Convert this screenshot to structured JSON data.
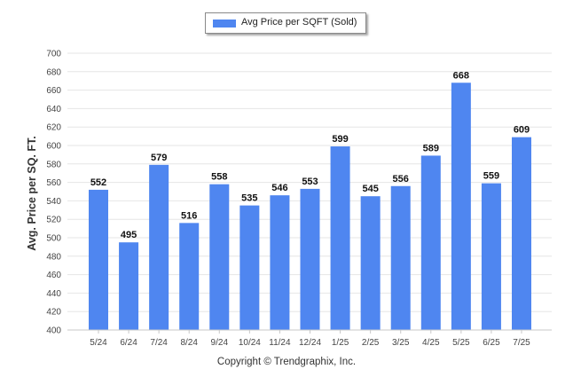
{
  "chart_data": {
    "type": "bar",
    "title": "",
    "xlabel": "",
    "ylabel": "Avg. Price per SQ. FT.",
    "categories": [
      "5/24",
      "6/24",
      "7/24",
      "8/24",
      "9/24",
      "10/24",
      "11/24",
      "12/24",
      "1/25",
      "2/25",
      "3/25",
      "4/25",
      "5/25",
      "6/25",
      "7/25"
    ],
    "series": [
      {
        "name": "Avg Price per SQFT (Sold)",
        "values": [
          552,
          495,
          579,
          516,
          558,
          535,
          546,
          553,
          599,
          545,
          556,
          589,
          668,
          559,
          609
        ]
      }
    ],
    "ylim": [
      400,
      700
    ],
    "yticks": [
      400,
      420,
      440,
      460,
      480,
      500,
      520,
      540,
      560,
      580,
      600,
      620,
      640,
      660,
      680,
      700
    ],
    "data_labels": true,
    "grid": true,
    "legend_position": "top-center",
    "bar_color": "#4f86f0"
  },
  "footer": {
    "copyright": "Copyright © Trendgraphix, Inc."
  }
}
